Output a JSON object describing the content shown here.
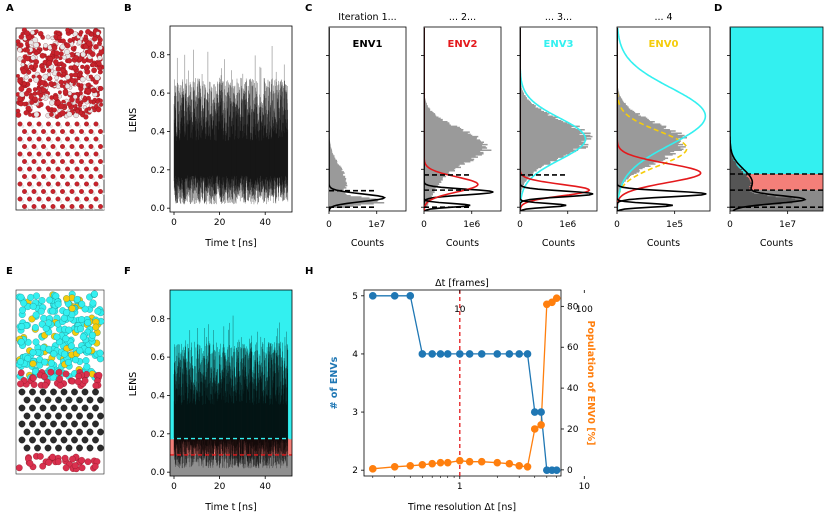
{
  "panels": {
    "A": "A",
    "B": "B",
    "C": "C",
    "D": "D",
    "E": "E",
    "F": "F",
    "H": "H"
  },
  "colors": {
    "cyan": "#33f0f0",
    "red": "#e4191c",
    "salmon": "#f47f79",
    "gold": "#f5cc0a",
    "grey": "#9a9a9a",
    "blue": "#1f77b4",
    "orange": "#ff7f0e",
    "ice_red": "#c8232c",
    "crimson": "#d9304e"
  },
  "panel_b": {
    "ylabel": "LENS",
    "xlabel": "Time t [ns]",
    "xticks": [
      "0",
      "20",
      "40"
    ],
    "yticks": [
      "0.0",
      "0.2",
      "0.4",
      "0.6",
      "0.8"
    ]
  },
  "panel_c": {
    "titles": [
      "Iteration 1...",
      "... 2...",
      "... 3...",
      "... 4"
    ],
    "env_labels": [
      "ENV1",
      "ENV2",
      "ENV3",
      "ENV0"
    ],
    "xlabel": "Counts",
    "xtick_zero": "0",
    "xtick_scale": [
      "1e7",
      "1e6",
      "1e6",
      "1e5"
    ]
  },
  "panel_d": {
    "xlabel": "Counts",
    "xticks": [
      "0",
      "1e7"
    ]
  },
  "panel_f": {
    "ylabel": "LENS",
    "xlabel": "Time t [ns]",
    "xticks": [
      "0",
      "20",
      "40"
    ],
    "yticks": [
      "0.0",
      "0.2",
      "0.4",
      "0.6",
      "0.8"
    ]
  },
  "chart_data": {
    "type": "line",
    "title": "Δt [frames]",
    "xlabel": "Time resolution Δt [ns]",
    "ylabel": "# of ENVs",
    "y2label": "Population of ENV0 [%]",
    "xscale": "log",
    "xlim": [
      0.17,
      6.5
    ],
    "ylim": [
      1.9,
      5.1
    ],
    "y2lim": [
      -3,
      88
    ],
    "xticks": [
      "1",
      "10"
    ],
    "top_xticks": [
      "10",
      "100"
    ],
    "yticks": [
      "2",
      "3",
      "4",
      "5"
    ],
    "y2ticks": [
      "0",
      "20",
      "40",
      "60",
      "80"
    ],
    "threshold_x": 1,
    "x": [
      0.2,
      0.3,
      0.4,
      0.5,
      0.6,
      0.7,
      0.8,
      1.0,
      1.2,
      1.5,
      2.0,
      2.5,
      3.0,
      3.5,
      4.0,
      4.5,
      5.0,
      5.5,
      6.0
    ],
    "series": [
      {
        "name": "# of ENVs",
        "axis": "left",
        "values": [
          5,
          5,
          5,
          4,
          4,
          4,
          4,
          4,
          4,
          4,
          4,
          4,
          4,
          4,
          3,
          3,
          2,
          2,
          2
        ]
      },
      {
        "name": "Population of ENV0",
        "axis": "right",
        "values": [
          0.5,
          1.5,
          2,
          2.5,
          3,
          3.5,
          3.5,
          4.5,
          4,
          4,
          3.5,
          3,
          2,
          1.5,
          20,
          22,
          81,
          82,
          84
        ]
      }
    ]
  }
}
